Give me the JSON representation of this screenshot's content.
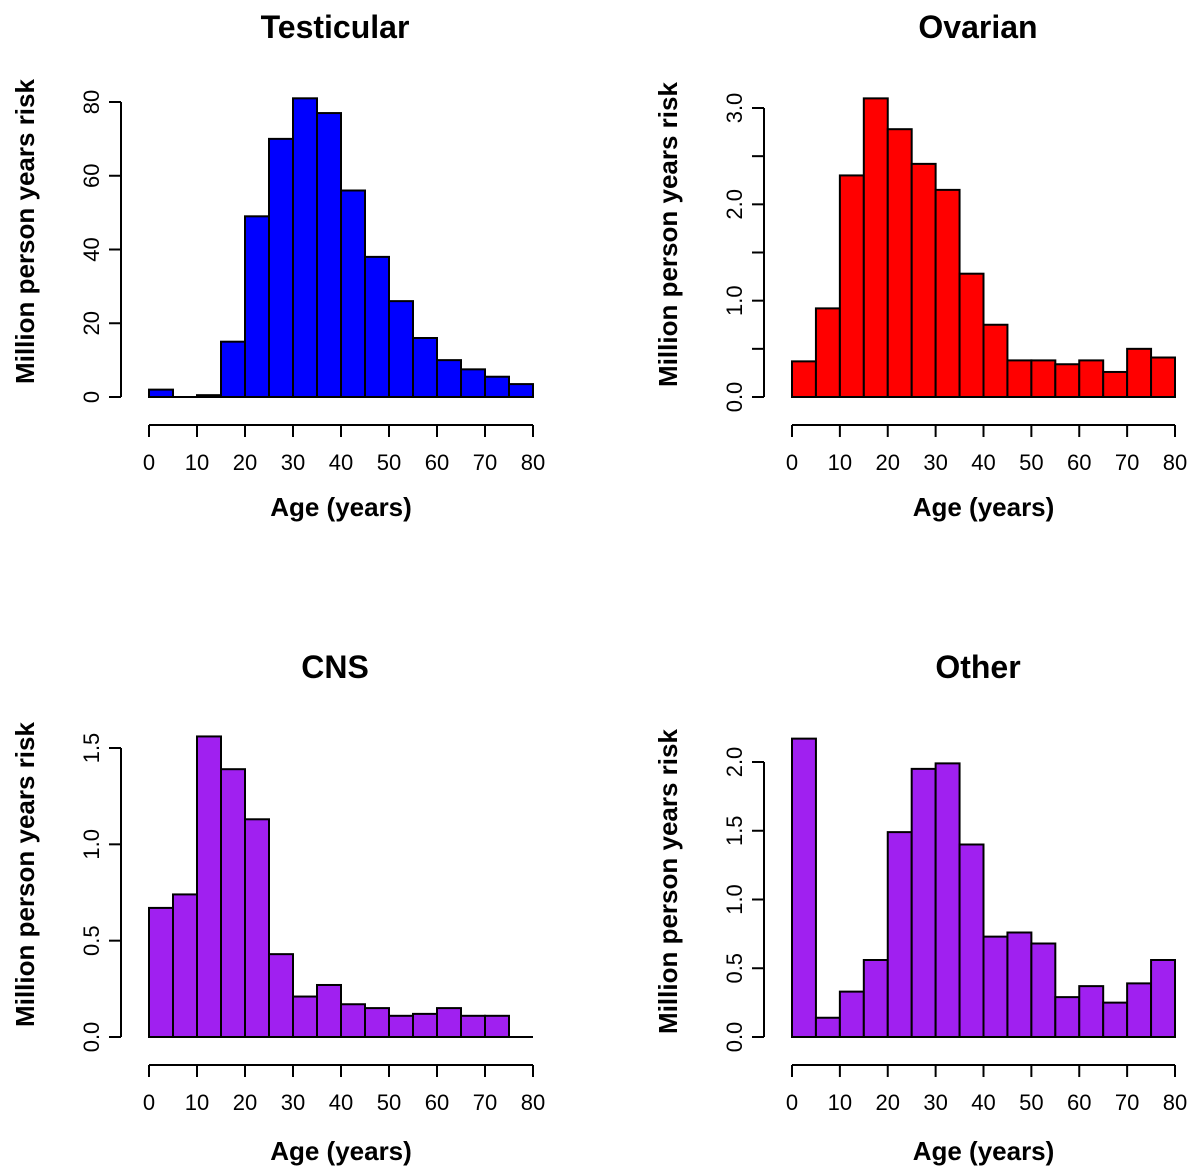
{
  "chart_data": [
    {
      "type": "bar",
      "title": "Testicular",
      "xlabel": "Age (years)",
      "ylabel": "Million person years risk",
      "bar_color": "#0000ff",
      "xlim": [
        0,
        80
      ],
      "ylim": [
        0,
        80
      ],
      "x_ticks": [
        0,
        10,
        20,
        30,
        40,
        50,
        60,
        70,
        80
      ],
      "y_ticks": [
        0,
        20,
        40,
        60,
        80
      ],
      "y_tick_labels": [
        "0",
        "20",
        "40",
        "60",
        "80"
      ],
      "bin_edges": [
        0,
        5,
        10,
        15,
        20,
        25,
        30,
        35,
        40,
        45,
        50,
        55,
        60,
        65,
        70,
        75,
        80
      ],
      "values": [
        2,
        0,
        0.5,
        15,
        49,
        70,
        81,
        77,
        56,
        38,
        26,
        16,
        10,
        7.5,
        5.5,
        3.5
      ]
    },
    {
      "type": "bar",
      "title": "Ovarian",
      "xlabel": "Age (years)",
      "ylabel": "Million person years risk",
      "bar_color": "#ff0000",
      "xlim": [
        0,
        80
      ],
      "ylim": [
        0,
        3.0
      ],
      "x_ticks": [
        0,
        10,
        20,
        30,
        40,
        50,
        60,
        70,
        80
      ],
      "y_ticks": [
        0,
        0.5,
        1.0,
        1.5,
        2.0,
        2.5,
        3.0
      ],
      "y_tick_labels": [
        "0.0",
        "",
        "1.0",
        "",
        "2.0",
        "",
        "3.0"
      ],
      "bin_edges": [
        0,
        5,
        10,
        15,
        20,
        25,
        30,
        35,
        40,
        45,
        50,
        55,
        60,
        65,
        70,
        75,
        80
      ],
      "values": [
        0.37,
        0.92,
        2.3,
        3.1,
        2.78,
        2.42,
        2.15,
        1.28,
        0.75,
        0.38,
        0.38,
        0.34,
        0.38,
        0.26,
        0.5,
        0.41
      ]
    },
    {
      "type": "bar",
      "title": "CNS",
      "xlabel": "Age (years)",
      "ylabel": "Million person years risk",
      "bar_color": "#a020f0",
      "xlim": [
        0,
        80
      ],
      "ylim": [
        0,
        1.5
      ],
      "x_ticks": [
        0,
        10,
        20,
        30,
        40,
        50,
        60,
        70,
        80
      ],
      "y_ticks": [
        0,
        0.5,
        1.0,
        1.5
      ],
      "y_tick_labels": [
        "0.0",
        "0.5",
        "1.0",
        "1.5"
      ],
      "bin_edges": [
        0,
        5,
        10,
        15,
        20,
        25,
        30,
        35,
        40,
        45,
        50,
        55,
        60,
        65,
        70,
        75
      ],
      "values": [
        0.67,
        0.74,
        1.56,
        1.39,
        1.13,
        0.43,
        0.21,
        0.27,
        0.17,
        0.15,
        0.11,
        0.12,
        0.15,
        0.11,
        0.11
      ]
    },
    {
      "type": "bar",
      "title": "Other",
      "xlabel": "Age (years)",
      "ylabel": "Million person years risk",
      "bar_color": "#a020f0",
      "xlim": [
        0,
        80
      ],
      "ylim": [
        0,
        2.0
      ],
      "x_ticks": [
        0,
        10,
        20,
        30,
        40,
        50,
        60,
        70,
        80
      ],
      "y_ticks": [
        0,
        0.5,
        1.0,
        1.5,
        2.0
      ],
      "y_tick_labels": [
        "0.0",
        "0.5",
        "1.0",
        "1.5",
        "2.0"
      ],
      "bin_edges": [
        0,
        5,
        10,
        15,
        20,
        25,
        30,
        35,
        40,
        45,
        50,
        55,
        60,
        65,
        70,
        75,
        80
      ],
      "values": [
        2.17,
        0.14,
        0.33,
        0.56,
        1.49,
        1.95,
        1.99,
        1.4,
        0.73,
        0.76,
        0.68,
        0.29,
        0.37,
        0.25,
        0.39,
        0.56
      ]
    }
  ]
}
